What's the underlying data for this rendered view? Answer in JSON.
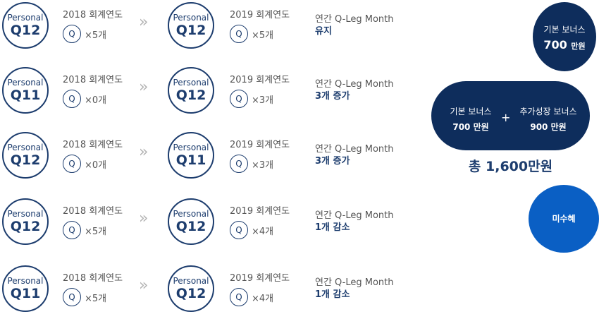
{
  "rows": [
    {
      "from": {
        "t1": "Personal",
        "t2": "Q12"
      },
      "from_year": "2018 회계연도",
      "from_q": "Q",
      "from_count": "×5개",
      "arrow": "»",
      "to": {
        "t1": "Personal",
        "t2": "Q12"
      },
      "to_year": "2019 회계연도",
      "to_q": "Q",
      "to_count": "×5개",
      "res1": "연간 Q-Leg Month",
      "res2": "유지"
    },
    {
      "from": {
        "t1": "Personal",
        "t2": "Q11"
      },
      "from_year": "2018 회계연도",
      "from_q": "Q",
      "from_count": "×0개",
      "arrow": "»",
      "to": {
        "t1": "Personal",
        "t2": "Q12"
      },
      "to_year": "2019 회계연도",
      "to_q": "Q",
      "to_count": "×3개",
      "res1": "연간 Q-Leg Month",
      "res2": "3개 증가"
    },
    {
      "from": {
        "t1": "Personal",
        "t2": "Q12"
      },
      "from_year": "2018 회계연도",
      "from_q": "Q",
      "from_count": "×0개",
      "arrow": "»",
      "to": {
        "t1": "Personal",
        "t2": "Q11"
      },
      "to_year": "2019 회계연도",
      "to_q": "Q",
      "to_count": "×3개",
      "res1": "연간 Q-Leg Month",
      "res2": "3개 증가"
    },
    {
      "from": {
        "t1": "Personal",
        "t2": "Q12"
      },
      "from_year": "2018 회계연도",
      "from_q": "Q",
      "from_count": "×5개",
      "arrow": "»",
      "to": {
        "t1": "Personal",
        "t2": "Q12"
      },
      "to_year": "2019 회계연도",
      "to_q": "Q",
      "to_count": "×4개",
      "res1": "연간 Q-Leg Month",
      "res2": "1개 감소"
    },
    {
      "from": {
        "t1": "Personal",
        "t2": "Q11"
      },
      "from_year": "2018 회계연도",
      "from_q": "Q",
      "from_count": "×5개",
      "arrow": "»",
      "to": {
        "t1": "Personal",
        "t2": "Q12"
      },
      "to_year": "2019 회계연도",
      "to_q": "Q",
      "to_count": "×4개",
      "res1": "연간 Q-Leg Month",
      "res2": "1개 감소"
    }
  ],
  "bonus1": {
    "label": "기본 보너스",
    "amount": "700",
    "unit": "만원"
  },
  "bonus2": {
    "a_label": "기본 보너스",
    "a_amount": "700 만원",
    "plus": "+",
    "b_label": "추가성장 보너스",
    "b_amount": "900 만원",
    "total": "총 1,600만원"
  },
  "bonus3": {
    "label": "미수혜"
  },
  "colors": {
    "navy": "#0e2d5c",
    "blue": "#0a5fc4",
    "text_navy": "#1d3d6e"
  }
}
